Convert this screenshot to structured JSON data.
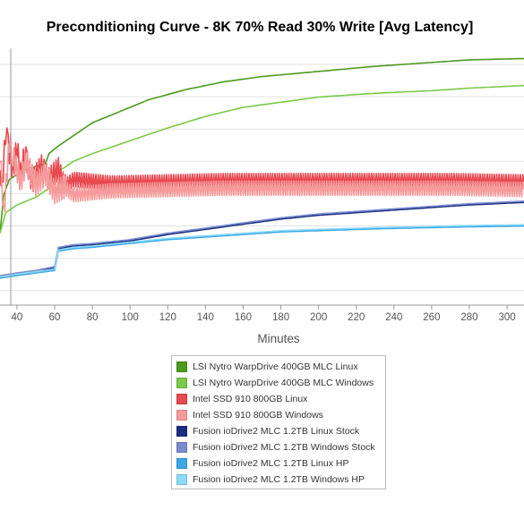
{
  "colors": {
    "lsi_linux": "#4c9a1e",
    "lsi_windows": "#7cc94a",
    "intel_linux": "#e8484f",
    "intel_windows": "#f69b9b",
    "fusion_stock_linux": "#1b2d7e",
    "fusion_stock_windows": "#7b8bd0",
    "fusion_hp_linux": "#3aa7e6",
    "fusion_hp_windows": "#8ddbfb"
  },
  "chart_data": {
    "type": "line",
    "title": "Preconditioning Curve - 8K 70% Read 30% Write [Avg Latency]",
    "xlabel": "Minutes",
    "ylabel": "",
    "x_ticks": [
      40,
      60,
      80,
      100,
      120,
      140,
      160,
      180,
      200,
      220,
      240,
      260,
      280,
      300
    ],
    "xlim": [
      31,
      309
    ],
    "grid": "horizontal",
    "legend_position": "bottom-center",
    "series": [
      {
        "name": "LSI Nytro WarpDrive 400GB MLC Linux",
        "color_key": "lsi_linux",
        "points": [
          [
            31,
            2.8
          ],
          [
            33,
            4.3
          ],
          [
            36,
            4.9
          ],
          [
            45,
            5.3
          ],
          [
            55,
            5.5
          ],
          [
            57,
            5.9
          ],
          [
            62,
            6.2
          ],
          [
            70,
            6.6
          ],
          [
            80,
            7.1
          ],
          [
            100,
            7.7
          ],
          [
            110,
            8.0
          ],
          [
            130,
            8.4
          ],
          [
            150,
            8.7
          ],
          [
            170,
            8.9
          ],
          [
            200,
            9.1
          ],
          [
            230,
            9.3
          ],
          [
            260,
            9.45
          ],
          [
            280,
            9.55
          ],
          [
            309,
            9.6
          ]
        ]
      },
      {
        "name": "LSI Nytro WarpDrive 400GB MLC Windows",
        "color_key": "lsi_windows",
        "points": [
          [
            31,
            2.8
          ],
          [
            34,
            3.6
          ],
          [
            40,
            3.9
          ],
          [
            50,
            4.2
          ],
          [
            58,
            4.6
          ],
          [
            60,
            5.1
          ],
          [
            70,
            5.6
          ],
          [
            80,
            5.9
          ],
          [
            100,
            6.4
          ],
          [
            120,
            6.9
          ],
          [
            140,
            7.35
          ],
          [
            160,
            7.7
          ],
          [
            180,
            7.9
          ],
          [
            200,
            8.1
          ],
          [
            230,
            8.25
          ],
          [
            260,
            8.35
          ],
          [
            280,
            8.45
          ],
          [
            309,
            8.55
          ]
        ]
      },
      {
        "name": "Intel SSD 910 800GB Linux",
        "color_key": "intel_linux",
        "points": [
          [
            31,
            5.7
          ],
          [
            32,
            4.5
          ],
          [
            34,
            6.7
          ],
          [
            38,
            5.2
          ],
          [
            40,
            6.2
          ],
          [
            42,
            5.1
          ],
          [
            44,
            5.9
          ],
          [
            48,
            4.8
          ],
          [
            53,
            5.4
          ],
          [
            57,
            4.9
          ],
          [
            62,
            5.3
          ],
          [
            65,
            4.6
          ],
          [
            70,
            4.9
          ],
          [
            90,
            4.75
          ],
          [
            120,
            4.8
          ],
          [
            150,
            4.85
          ],
          [
            180,
            4.85
          ],
          [
            210,
            4.85
          ],
          [
            240,
            4.85
          ],
          [
            270,
            4.85
          ],
          [
            309,
            4.8
          ]
        ]
      },
      {
        "name": "Intel SSD 910 800GB Windows",
        "color_key": "intel_windows",
        "points": [
          [
            31,
            6.0
          ],
          [
            33,
            3.5
          ],
          [
            36,
            6.4
          ],
          [
            39,
            5.5
          ],
          [
            42,
            4.8
          ],
          [
            45,
            5.6
          ],
          [
            50,
            4.7
          ],
          [
            55,
            5.1
          ],
          [
            60,
            4.4
          ],
          [
            65,
            4.6
          ],
          [
            70,
            4.3
          ],
          [
            90,
            4.45
          ],
          [
            120,
            4.5
          ],
          [
            150,
            4.55
          ],
          [
            180,
            4.55
          ],
          [
            210,
            4.55
          ],
          [
            240,
            4.55
          ],
          [
            270,
            4.55
          ],
          [
            309,
            4.5
          ]
        ]
      },
      {
        "name": "Fusion ioDrive2 MLC 1.2TB Linux Stock",
        "color_key": "fusion_stock_linux",
        "points": [
          [
            31,
            1.1
          ],
          [
            40,
            1.2
          ],
          [
            50,
            1.3
          ],
          [
            60,
            1.45
          ],
          [
            62,
            2.2
          ],
          [
            70,
            2.3
          ],
          [
            80,
            2.35
          ],
          [
            100,
            2.5
          ],
          [
            120,
            2.75
          ],
          [
            140,
            2.95
          ],
          [
            160,
            3.15
          ],
          [
            180,
            3.35
          ],
          [
            200,
            3.5
          ],
          [
            230,
            3.65
          ],
          [
            260,
            3.8
          ],
          [
            280,
            3.9
          ],
          [
            309,
            4.0
          ]
        ]
      },
      {
        "name": "Fusion ioDrive2 MLC 1.2TB Windows Stock",
        "color_key": "fusion_stock_windows",
        "points": [
          [
            31,
            1.15
          ],
          [
            40,
            1.25
          ],
          [
            50,
            1.35
          ],
          [
            60,
            1.5
          ],
          [
            62,
            2.25
          ],
          [
            70,
            2.35
          ],
          [
            80,
            2.4
          ],
          [
            100,
            2.55
          ],
          [
            120,
            2.8
          ],
          [
            140,
            3.0
          ],
          [
            160,
            3.2
          ],
          [
            180,
            3.4
          ],
          [
            200,
            3.55
          ],
          [
            230,
            3.7
          ],
          [
            260,
            3.85
          ],
          [
            280,
            3.95
          ],
          [
            309,
            4.05
          ]
        ]
      },
      {
        "name": "Fusion ioDrive2 MLC 1.2TB Linux HP",
        "color_key": "fusion_hp_linux",
        "points": [
          [
            31,
            1.05
          ],
          [
            40,
            1.15
          ],
          [
            50,
            1.25
          ],
          [
            60,
            1.35
          ],
          [
            62,
            2.1
          ],
          [
            70,
            2.2
          ],
          [
            80,
            2.25
          ],
          [
            100,
            2.4
          ],
          [
            120,
            2.55
          ],
          [
            140,
            2.65
          ],
          [
            160,
            2.75
          ],
          [
            180,
            2.85
          ],
          [
            200,
            2.9
          ],
          [
            230,
            2.97
          ],
          [
            260,
            3.02
          ],
          [
            280,
            3.05
          ],
          [
            309,
            3.08
          ]
        ]
      },
      {
        "name": "Fusion ioDrive2 MLC 1.2TB Windows HP",
        "color_key": "fusion_hp_windows",
        "points": [
          [
            31,
            1.1
          ],
          [
            40,
            1.2
          ],
          [
            50,
            1.3
          ],
          [
            60,
            1.4
          ],
          [
            62,
            2.15
          ],
          [
            70,
            2.25
          ],
          [
            80,
            2.3
          ],
          [
            100,
            2.45
          ],
          [
            120,
            2.6
          ],
          [
            140,
            2.7
          ],
          [
            160,
            2.8
          ],
          [
            180,
            2.9
          ],
          [
            200,
            2.95
          ],
          [
            230,
            3.02
          ],
          [
            260,
            3.07
          ],
          [
            280,
            3.1
          ],
          [
            309,
            3.13
          ]
        ]
      }
    ],
    "legend": [
      "LSI Nytro WarpDrive 400GB MLC Linux",
      "LSI Nytro WarpDrive 400GB MLC Windows",
      "Intel SSD 910 800GB Linux",
      "Intel SSD 910 800GB Windows",
      "Fusion ioDrive2 MLC 1.2TB Linux Stock",
      "Fusion ioDrive2 MLC 1.2TB Windows Stock",
      "Fusion ioDrive2 MLC 1.2TB Linux HP",
      "Fusion ioDrive2 MLC 1.2TB Windows HP"
    ]
  }
}
